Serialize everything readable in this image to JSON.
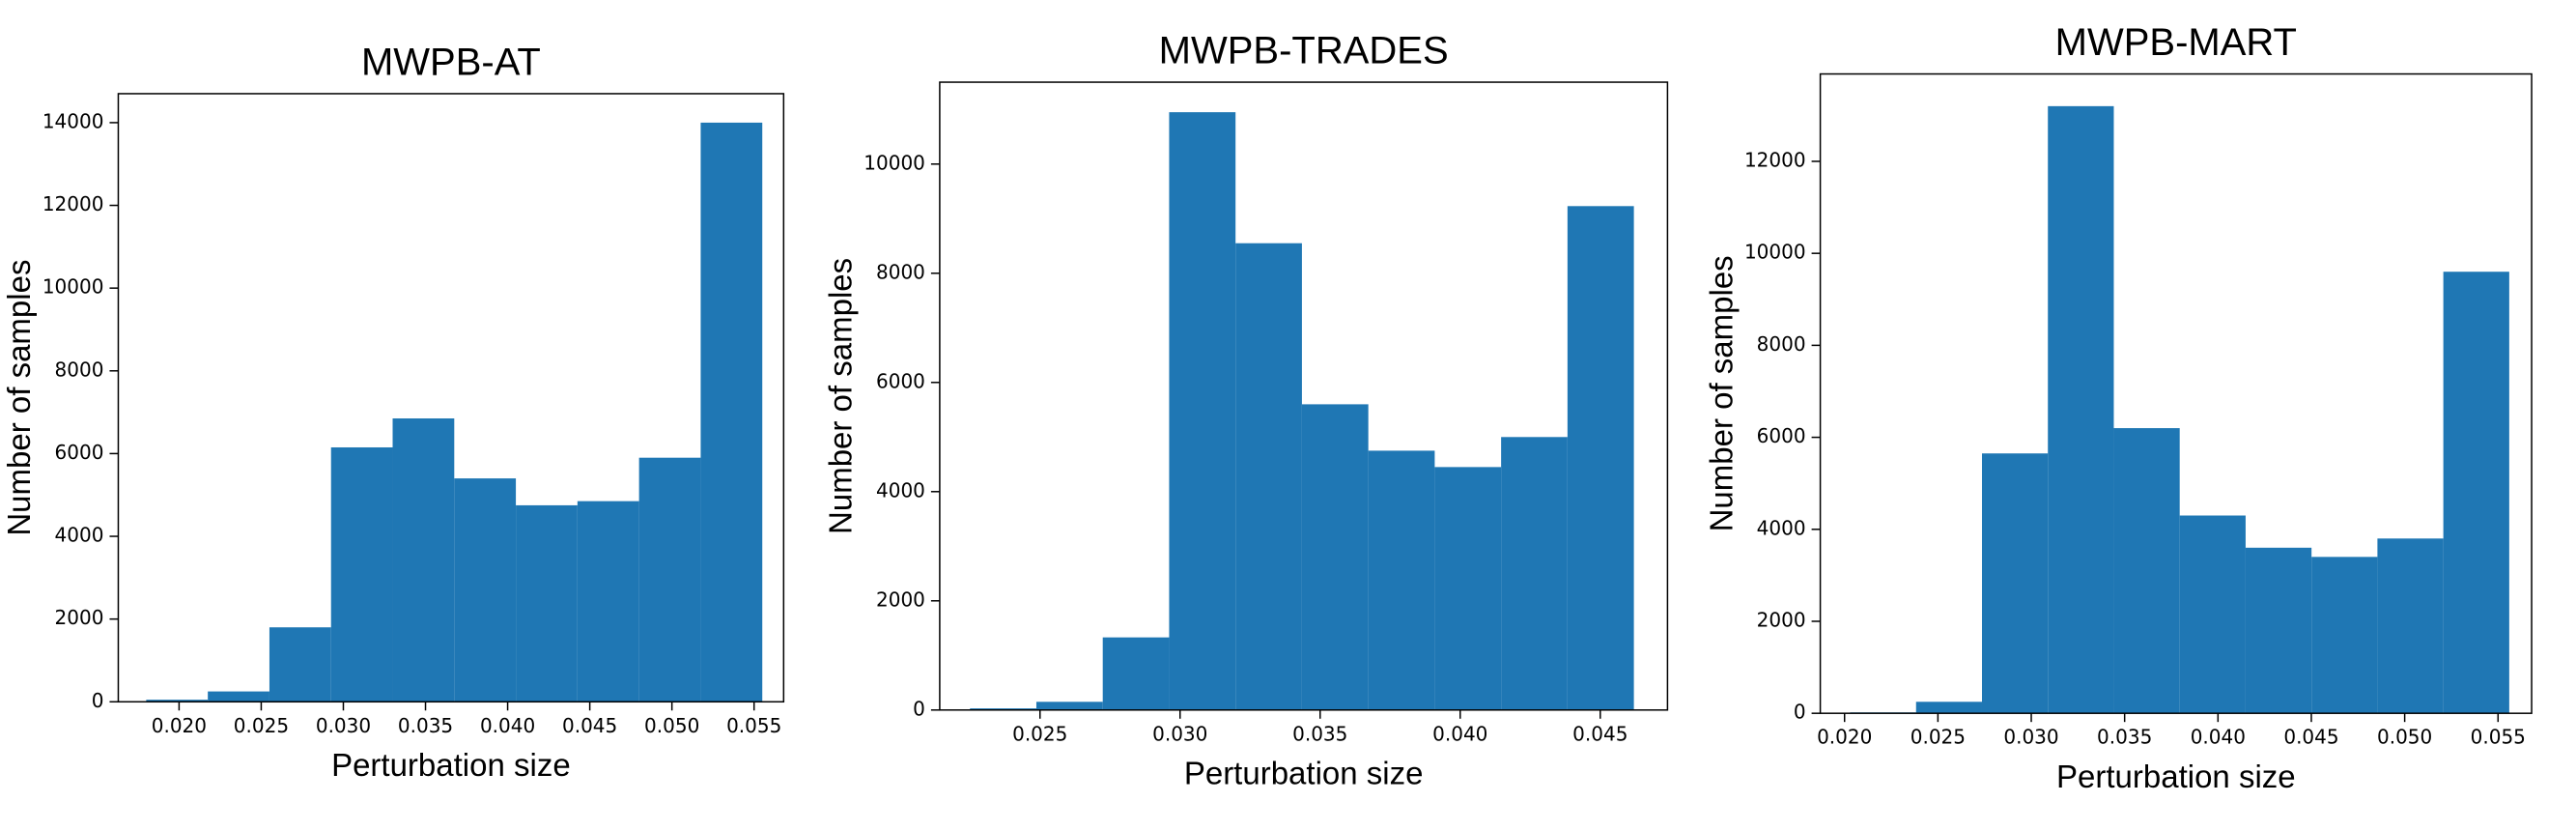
{
  "chart_data": [
    {
      "type": "histogram",
      "title": "MWPB-AT",
      "x_label": "Perturbation size",
      "y_label": "Number of samples",
      "color": "#1f77b4",
      "bins": [
        0.018,
        0.02175,
        0.0255,
        0.02925,
        0.033,
        0.03675,
        0.0405,
        0.04425,
        0.048,
        0.05175,
        0.0555
      ],
      "values": [
        50,
        250,
        1800,
        6150,
        6850,
        5400,
        4750,
        4850,
        5900,
        14000
      ],
      "xlim": [
        0.0163,
        0.0568
      ],
      "ylim": [
        0,
        14700
      ],
      "xticks": [
        {
          "value": 0.02,
          "label": "0.020"
        },
        {
          "value": 0.025,
          "label": "0.025"
        },
        {
          "value": 0.03,
          "label": "0.030"
        },
        {
          "value": 0.035,
          "label": "0.035"
        },
        {
          "value": 0.04,
          "label": "0.040"
        },
        {
          "value": 0.045,
          "label": "0.045"
        },
        {
          "value": 0.05,
          "label": "0.050"
        },
        {
          "value": 0.055,
          "label": "0.055"
        }
      ],
      "yticks": [
        0,
        2000,
        4000,
        6000,
        8000,
        10000,
        12000,
        14000
      ]
    },
    {
      "type": "histogram",
      "title": "MWPB-TRADES",
      "x_label": "Perturbation size",
      "y_label": "Number of samples",
      "color": "#1f77b4",
      "bins": [
        0.0225,
        0.02487,
        0.02724,
        0.02961,
        0.03198,
        0.03435,
        0.03672,
        0.03909,
        0.04146,
        0.04383,
        0.0462
      ],
      "values": [
        30,
        150,
        1330,
        10950,
        8550,
        5600,
        4750,
        4450,
        5000,
        9230
      ],
      "xlim": [
        0.02142,
        0.0474
      ],
      "ylim": [
        0,
        11500
      ],
      "xticks": [
        {
          "value": 0.025,
          "label": "0.025"
        },
        {
          "value": 0.03,
          "label": "0.030"
        },
        {
          "value": 0.035,
          "label": "0.035"
        },
        {
          "value": 0.04,
          "label": "0.040"
        },
        {
          "value": 0.045,
          "label": "0.045"
        }
      ],
      "yticks": [
        0,
        2000,
        4000,
        6000,
        8000,
        10000
      ]
    },
    {
      "type": "histogram",
      "title": "MWPB-MART",
      "x_label": "Perturbation size",
      "y_label": "Number of samples",
      "color": "#1f77b4",
      "bins": [
        0.0203,
        0.02383,
        0.02736,
        0.03089,
        0.03442,
        0.03795,
        0.04148,
        0.04501,
        0.04854,
        0.05207,
        0.0556
      ],
      "values": [
        20,
        250,
        5650,
        13200,
        6200,
        4300,
        3600,
        3400,
        3800,
        9600
      ],
      "xlim": [
        0.0187,
        0.0568
      ],
      "ylim": [
        0,
        13900
      ],
      "xticks": [
        {
          "value": 0.02,
          "label": "0.020"
        },
        {
          "value": 0.025,
          "label": "0.025"
        },
        {
          "value": 0.03,
          "label": "0.030"
        },
        {
          "value": 0.035,
          "label": "0.035"
        },
        {
          "value": 0.04,
          "label": "0.040"
        },
        {
          "value": 0.045,
          "label": "0.045"
        },
        {
          "value": 0.05,
          "label": "0.050"
        },
        {
          "value": 0.055,
          "label": "0.055"
        }
      ],
      "yticks": [
        0,
        2000,
        4000,
        6000,
        8000,
        10000,
        12000
      ]
    }
  ]
}
